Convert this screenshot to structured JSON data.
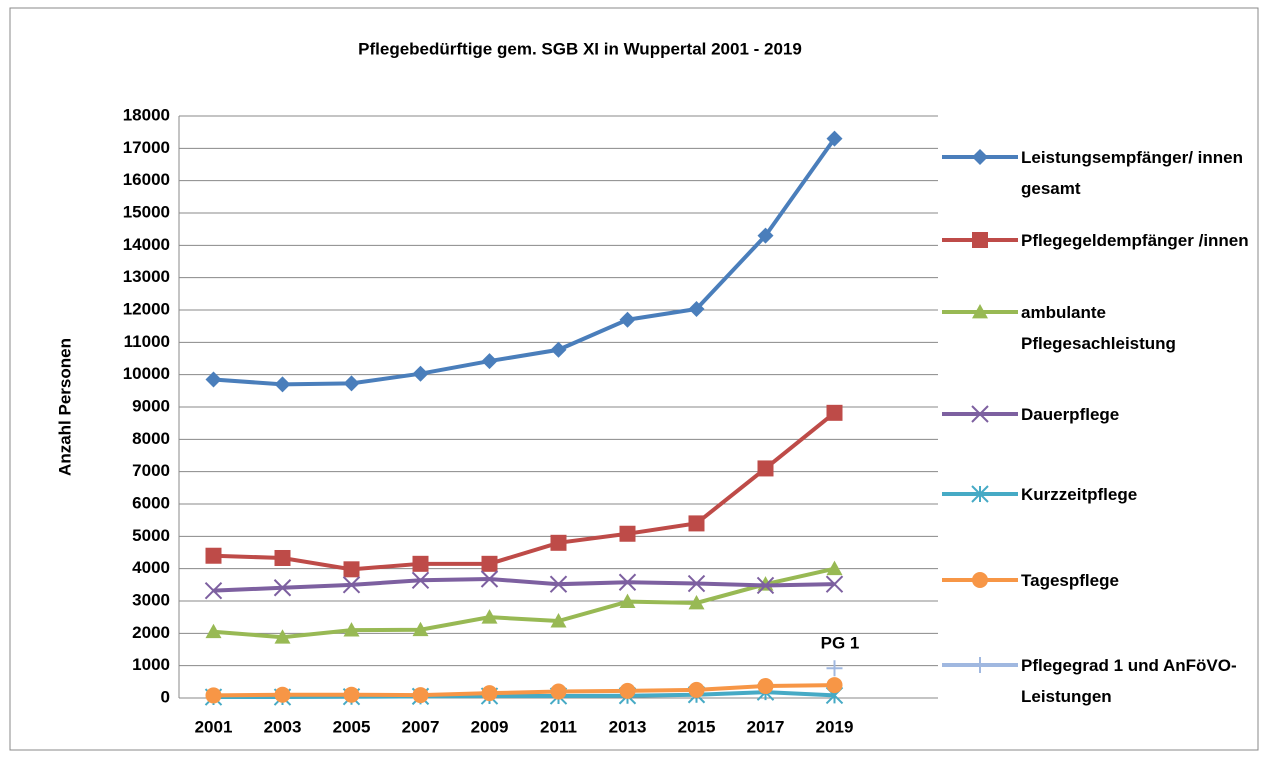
{
  "chart_data": {
    "type": "line",
    "title": "Pflegebedürftige gem. SGB XI in Wuppertal 2001 - 2019",
    "y_label": "Anzahl Personen",
    "categories": [
      "2001",
      "2003",
      "2005",
      "2007",
      "2009",
      "2011",
      "2013",
      "2015",
      "2017",
      "2019"
    ],
    "series": [
      {
        "name": "Leistungsempfänger/ innen gesamt",
        "color": "#4a7ebb",
        "marker": "diamond",
        "values": [
          9850,
          9700,
          9730,
          10030,
          10420,
          10770,
          11700,
          12030,
          14300,
          17300
        ]
      },
      {
        "name": "Pflegegeldempfänger /innen",
        "color": "#be4b48",
        "marker": "square",
        "values": [
          4400,
          4330,
          3980,
          4150,
          4150,
          4800,
          5080,
          5400,
          7100,
          8820
        ]
      },
      {
        "name": "ambulante Pflegesachleistung",
        "color": "#98b954",
        "marker": "triangle",
        "values": [
          2050,
          1880,
          2100,
          2110,
          2500,
          2380,
          2980,
          2940,
          3520,
          4000
        ]
      },
      {
        "name": "Dauerpflege",
        "color": "#7d60a0",
        "marker": "x",
        "values": [
          3320,
          3410,
          3500,
          3640,
          3680,
          3520,
          3580,
          3540,
          3480,
          3520
        ]
      },
      {
        "name": "Kurzzeitpflege",
        "color": "#46aac5",
        "marker": "star",
        "values": [
          30,
          30,
          40,
          50,
          60,
          60,
          70,
          100,
          180,
          80
        ]
      },
      {
        "name": "Tagespflege",
        "color": "#f79646",
        "marker": "circle",
        "values": [
          80,
          100,
          100,
          90,
          150,
          200,
          220,
          250,
          370,
          400
        ]
      },
      {
        "name": "Pflegegrad 1 und AnFöVO-Leistungen",
        "color": "#a0b8e0",
        "marker": "plus",
        "values": [
          null,
          null,
          null,
          null,
          null,
          null,
          null,
          null,
          null,
          920
        ]
      }
    ],
    "annotation": "PG 1",
    "ylim": [
      0,
      18000
    ],
    "yticks": [
      0,
      1000,
      2000,
      3000,
      4000,
      5000,
      6000,
      7000,
      8000,
      9000,
      10000,
      11000,
      12000,
      13000,
      14000,
      15000,
      16000,
      17000,
      18000
    ],
    "grid": true,
    "legend": "right"
  }
}
